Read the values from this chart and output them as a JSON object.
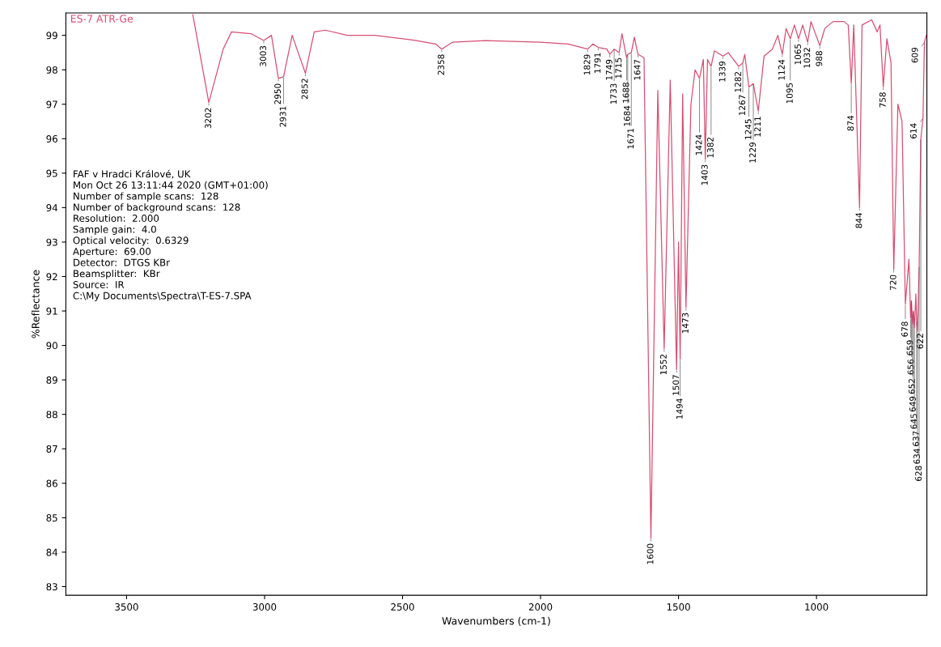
{
  "chart_data": {
    "type": "line",
    "title": "ES-7 ATR-Ge",
    "xlabel": "Wavenumbers (cm-1)",
    "ylabel": "%Reflectance",
    "xlim": [
      3720,
      600
    ],
    "ylim": [
      82.75,
      99.65
    ],
    "xticks": [
      3500,
      3000,
      2500,
      2000,
      1500,
      1000
    ],
    "yticks": [
      83,
      84,
      85,
      86,
      87,
      88,
      89,
      90,
      91,
      92,
      93,
      94,
      95,
      96,
      97,
      98,
      99
    ],
    "line_style": "solid",
    "x": [
      3260,
      3202,
      3150,
      3120,
      3050,
      3003,
      2975,
      2950,
      2931,
      2900,
      2852,
      2820,
      2780,
      2700,
      2600,
      2450,
      2380,
      2358,
      2320,
      2200,
      2000,
      1900,
      1829,
      1810,
      1791,
      1760,
      1749,
      1733,
      1715,
      1705,
      1688,
      1684,
      1671,
      1660,
      1647,
      1625,
      1600,
      1575,
      1552,
      1530,
      1507,
      1500,
      1494,
      1485,
      1473,
      1455,
      1440,
      1424,
      1410,
      1403,
      1395,
      1382,
      1370,
      1339,
      1320,
      1282,
      1267,
      1260,
      1245,
      1229,
      1211,
      1190,
      1160,
      1140,
      1124,
      1110,
      1095,
      1080,
      1065,
      1050,
      1032,
      1020,
      988,
      970,
      940,
      900,
      885,
      874,
      865,
      844,
      835,
      800,
      780,
      770,
      758,
      745,
      730,
      720,
      705,
      690,
      678,
      665,
      659,
      656,
      652,
      649,
      645,
      640,
      637,
      634,
      628,
      622,
      614,
      609,
      602
    ],
    "series": [
      {
        "color": "#d64f73",
        "values": [
          99.6,
          97.05,
          98.6,
          99.1,
          99.05,
          98.85,
          99.0,
          97.75,
          97.8,
          99.0,
          97.9,
          99.1,
          99.15,
          99.0,
          99.0,
          98.85,
          98.75,
          98.6,
          98.8,
          98.85,
          98.8,
          98.75,
          98.6,
          98.75,
          98.65,
          98.6,
          98.45,
          98.6,
          98.5,
          99.05,
          98.35,
          98.45,
          98.5,
          98.95,
          98.45,
          98.35,
          84.4,
          97.4,
          89.9,
          97.7,
          89.3,
          93.0,
          89.6,
          97.3,
          91.1,
          97.0,
          98.0,
          97.75,
          98.3,
          95.4,
          98.3,
          98.1,
          98.55,
          98.4,
          98.5,
          98.1,
          98.2,
          98.45,
          97.5,
          97.6,
          96.8,
          98.4,
          98.6,
          99.0,
          98.45,
          99.2,
          98.9,
          99.3,
          98.9,
          99.3,
          98.8,
          99.4,
          98.7,
          99.2,
          99.4,
          99.4,
          99.3,
          97.6,
          99.3,
          94.0,
          99.3,
          99.45,
          99.1,
          99.3,
          97.5,
          98.9,
          98.2,
          92.2,
          97.0,
          96.5,
          91.2,
          92.5,
          90.8,
          91.3,
          90.6,
          91.0,
          90.5,
          91.5,
          90.7,
          90.4,
          92.3,
          96.0,
          96.6,
          98.8,
          99.0
        ]
      }
    ],
    "annotations": [
      "FAF v Hradci Králové, UK",
      "Mon Oct 26 13:11:44 2020 (GMT+01:00)",
      "Number of sample scans:  128",
      "Number of background scans:  128",
      "Resolution:  2.000",
      "Sample gain:  4.0",
      "Optical velocity:  0.6329",
      "Aperture:  69.00",
      "Detector:  DTGS KBr",
      "Beamsplitter:  KBr",
      "Source:  IR",
      "C:\\My Documents\\Spectra\\T-ES-7.SPA",
      {
        "text": "3202",
        "x": 3202,
        "y": 97.05
      },
      {
        "text": "3003",
        "x": 3003,
        "y": 98.85
      },
      {
        "text": "2950",
        "x": 2950,
        "y": 97.75
      },
      {
        "text": "2931",
        "x": 2931,
        "y": 97.8
      },
      {
        "text": "2852",
        "x": 2852,
        "y": 97.9
      },
      {
        "text": "2358",
        "x": 2358,
        "y": 98.6
      },
      {
        "text": "1829",
        "x": 1829,
        "y": 98.6
      },
      {
        "text": "1791",
        "x": 1791,
        "y": 98.65
      },
      {
        "text": "1749",
        "x": 1749,
        "y": 98.45
      },
      {
        "text": "1733",
        "x": 1733,
        "y": 98.6
      },
      {
        "text": "1715",
        "x": 1715,
        "y": 98.5
      },
      {
        "text": "1688",
        "x": 1688,
        "y": 98.35
      },
      {
        "text": "1684",
        "x": 1684,
        "y": 98.45
      },
      {
        "text": "1671",
        "x": 1671,
        "y": 98.5
      },
      {
        "text": "1647",
        "x": 1647,
        "y": 98.45
      },
      {
        "text": "1600",
        "x": 1600,
        "y": 84.4
      },
      {
        "text": "1552",
        "x": 1552,
        "y": 89.9
      },
      {
        "text": "1507",
        "x": 1507,
        "y": 89.3
      },
      {
        "text": "1494",
        "x": 1494,
        "y": 89.6
      },
      {
        "text": "1473",
        "x": 1473,
        "y": 91.1
      },
      {
        "text": "1424",
        "x": 1424,
        "y": 97.75
      },
      {
        "text": "1403",
        "x": 1403,
        "y": 95.4
      },
      {
        "text": "1382",
        "x": 1382,
        "y": 98.1
      },
      {
        "text": "1339",
        "x": 1339,
        "y": 98.4
      },
      {
        "text": "1282",
        "x": 1282,
        "y": 98.1
      },
      {
        "text": "1267",
        "x": 1267,
        "y": 98.2
      },
      {
        "text": "1245",
        "x": 1245,
        "y": 97.5
      },
      {
        "text": "1229",
        "x": 1229,
        "y": 97.6
      },
      {
        "text": "1211",
        "x": 1211,
        "y": 96.8
      },
      {
        "text": "1124",
        "x": 1124,
        "y": 98.45
      },
      {
        "text": "1095",
        "x": 1095,
        "y": 98.9
      },
      {
        "text": "1065",
        "x": 1065,
        "y": 98.9
      },
      {
        "text": "1032",
        "x": 1032,
        "y": 98.8
      },
      {
        "text": "988",
        "x": 988,
        "y": 98.7
      },
      {
        "text": "874",
        "x": 874,
        "y": 97.6
      },
      {
        "text": "844",
        "x": 844,
        "y": 94.0
      },
      {
        "text": "758",
        "x": 758,
        "y": 97.5
      },
      {
        "text": "720",
        "x": 720,
        "y": 92.2
      },
      {
        "text": "678",
        "x": 678,
        "y": 91.2
      },
      {
        "text": "659",
        "x": 659,
        "y": 90.8
      },
      {
        "text": "656",
        "x": 656,
        "y": 91.3
      },
      {
        "text": "652",
        "x": 652,
        "y": 90.6
      },
      {
        "text": "649",
        "x": 649,
        "y": 91.0
      },
      {
        "text": "645",
        "x": 645,
        "y": 90.5
      },
      {
        "text": "637",
        "x": 637,
        "y": 90.7
      },
      {
        "text": "634",
        "x": 634,
        "y": 90.4
      },
      {
        "text": "628",
        "x": 628,
        "y": 92.3
      },
      {
        "text": "622",
        "x": 622,
        "y": 96.0
      },
      {
        "text": "614",
        "x": 614,
        "y": 96.6
      },
      {
        "text": "609",
        "x": 609,
        "y": 98.8
      }
    ]
  }
}
